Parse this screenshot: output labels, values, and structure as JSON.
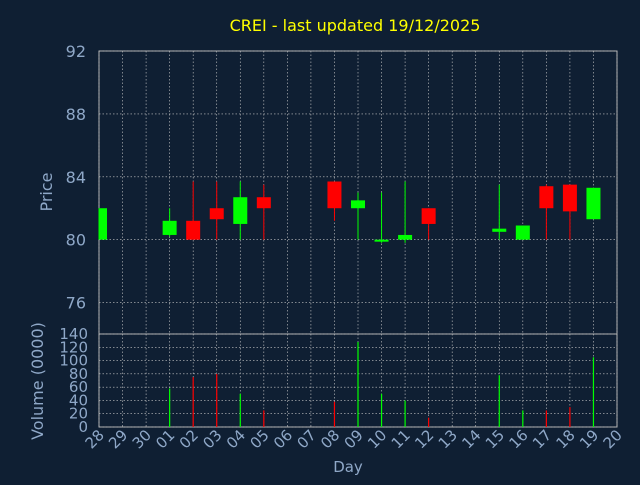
{
  "chart_data": {
    "type": "candlestick",
    "title": "CREI - last updated 19/12/2025",
    "xlabel": "Day",
    "colors": {
      "background": "#0f1f33",
      "plot_bg": "#0f1f33",
      "title": "#ffff00",
      "axis_text": "#8fa8c8",
      "grid": "#c8c8c8",
      "up": "#00ff00",
      "down": "#ff0000"
    },
    "x_ticks": [
      "28",
      "29",
      "30",
      "01",
      "02",
      "03",
      "04",
      "05",
      "06",
      "07",
      "08",
      "09",
      "10",
      "11",
      "12",
      "13",
      "14",
      "15",
      "16",
      "17",
      "18",
      "19",
      "20"
    ],
    "price_panel": {
      "ylabel": "Price",
      "ylim": [
        74,
        92
      ],
      "y_ticks": [
        76,
        80,
        84,
        88,
        92
      ],
      "candles": [
        {
          "day": "28",
          "open": 80.0,
          "close": 82.0,
          "high": 82.0,
          "low": 80.0
        },
        {
          "day": "01",
          "open": 80.3,
          "close": 81.2,
          "high": 82.0,
          "low": 80.2
        },
        {
          "day": "02",
          "open": 81.2,
          "close": 80.0,
          "high": 83.7,
          "low": 80.0
        },
        {
          "day": "03",
          "open": 82.0,
          "close": 81.3,
          "high": 83.7,
          "low": 80.0
        },
        {
          "day": "04",
          "open": 81.0,
          "close": 82.7,
          "high": 83.7,
          "low": 80.0
        },
        {
          "day": "05",
          "open": 82.7,
          "close": 82.0,
          "high": 83.5,
          "low": 80.0
        },
        {
          "day": "08",
          "open": 83.7,
          "close": 82.0,
          "high": 83.7,
          "low": 81.2
        },
        {
          "day": "09",
          "open": 82.0,
          "close": 82.5,
          "high": 83.0,
          "low": 80.0
        },
        {
          "day": "10",
          "open": 79.9,
          "close": 80.0,
          "high": 83.0,
          "low": 79.8
        },
        {
          "day": "11",
          "open": 80.0,
          "close": 80.3,
          "high": 83.7,
          "low": 79.8
        },
        {
          "day": "12",
          "open": 82.0,
          "close": 81.0,
          "high": 82.0,
          "low": 80.0
        },
        {
          "day": "15",
          "open": 80.5,
          "close": 80.7,
          "high": 83.5,
          "low": 80.0
        },
        {
          "day": "16",
          "open": 80.0,
          "close": 80.9,
          "high": 80.9,
          "low": 80.0
        },
        {
          "day": "17",
          "open": 83.4,
          "close": 82.0,
          "high": 83.5,
          "low": 80.0
        },
        {
          "day": "18",
          "open": 83.5,
          "close": 81.8,
          "high": 83.5,
          "low": 80.0
        },
        {
          "day": "19",
          "open": 81.3,
          "close": 83.3,
          "high": 83.3,
          "low": 81.3
        }
      ]
    },
    "volume_panel": {
      "ylabel": "Volume (0000)",
      "ylim": [
        0,
        140
      ],
      "y_ticks": [
        0,
        20,
        40,
        60,
        80,
        100,
        120,
        140
      ],
      "bars": [
        {
          "day": "01",
          "value": 58,
          "dir": "up"
        },
        {
          "day": "02",
          "value": 75,
          "dir": "down"
        },
        {
          "day": "03",
          "value": 80,
          "dir": "down"
        },
        {
          "day": "04",
          "value": 50,
          "dir": "up"
        },
        {
          "day": "05",
          "value": 25,
          "dir": "down"
        },
        {
          "day": "08",
          "value": 38,
          "dir": "down"
        },
        {
          "day": "09",
          "value": 128,
          "dir": "up"
        },
        {
          "day": "10",
          "value": 50,
          "dir": "up"
        },
        {
          "day": "11",
          "value": 40,
          "dir": "up"
        },
        {
          "day": "12",
          "value": 14,
          "dir": "down"
        },
        {
          "day": "15",
          "value": 78,
          "dir": "up"
        },
        {
          "day": "16",
          "value": 25,
          "dir": "up"
        },
        {
          "day": "17",
          "value": 25,
          "dir": "down"
        },
        {
          "day": "18",
          "value": 30,
          "dir": "down"
        },
        {
          "day": "19",
          "value": 105,
          "dir": "up"
        }
      ]
    }
  }
}
